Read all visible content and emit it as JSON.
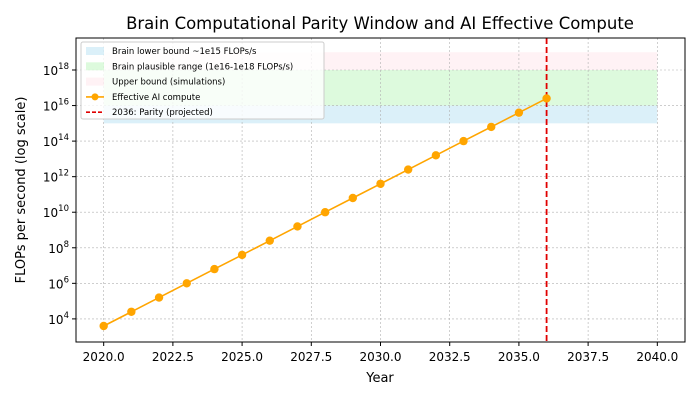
{
  "chart_data": {
    "type": "line",
    "title": "Brain Computational Parity Window and AI Effective Compute",
    "xlabel": "Year",
    "ylabel": "FLOPs per second (log scale)",
    "xlim": [
      2019.0,
      2041.0
    ],
    "ylim_log10": [
      2.7,
      19.8
    ],
    "y_scale": "log",
    "grid": true,
    "legend_position": "top-left",
    "x_ticks": [
      2020.0,
      2022.5,
      2025.0,
      2027.5,
      2030.0,
      2032.5,
      2035.0,
      2037.5,
      2040.0
    ],
    "x_tick_labels": [
      "2020.0",
      "2022.5",
      "2025.0",
      "2027.5",
      "2030.0",
      "2032.5",
      "2035.0",
      "2037.5",
      "2040.0"
    ],
    "y_ticks_log10": [
      4,
      6,
      8,
      10,
      12,
      14,
      16,
      18
    ],
    "y_tick_bases": [
      "10",
      "10",
      "10",
      "10",
      "10",
      "10",
      "10",
      "10"
    ],
    "y_tick_exponents": [
      "4",
      "6",
      "8",
      "10",
      "12",
      "14",
      "16",
      "18"
    ],
    "bands": [
      {
        "name": "Brain lower bound ~1e15 FLOPs/s",
        "x_range": [
          2020,
          2040
        ],
        "y_range_log10": [
          15,
          16
        ],
        "color": "#87ceeb",
        "opacity": 0.3
      },
      {
        "name": "Brain plausible range (1e16-1e18 FLOPs/s)",
        "x_range": [
          2020,
          2040
        ],
        "y_range_log10": [
          16,
          18
        ],
        "color": "#90ee90",
        "opacity": 0.3
      },
      {
        "name": "Upper bound (simulations)",
        "x_range": [
          2020,
          2040
        ],
        "y_range_log10": [
          18,
          19
        ],
        "color": "#ffc0cb",
        "opacity": 0.2
      }
    ],
    "series": [
      {
        "name": "Effective AI compute",
        "color": "#ffa500",
        "x": [
          2020,
          2021,
          2022,
          2023,
          2024,
          2025,
          2026,
          2027,
          2028,
          2029,
          2030,
          2031,
          2032,
          2033,
          2034,
          2035,
          2036
        ],
        "y_log10": [
          3.6,
          4.4,
          5.2,
          6.0,
          6.8,
          7.6,
          8.4,
          9.2,
          10.0,
          10.8,
          11.6,
          12.4,
          13.2,
          14.0,
          14.8,
          15.6,
          16.4
        ]
      }
    ],
    "vline": {
      "name": "2036: Parity (projected)",
      "x": 2036,
      "color": "#e00000"
    }
  }
}
